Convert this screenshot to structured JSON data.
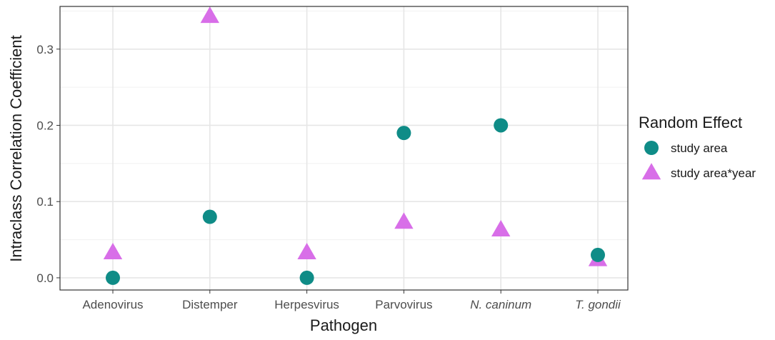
{
  "chart_data": {
    "type": "scatter",
    "title": "",
    "xlabel": "Pathogen",
    "ylabel": "Intraclass Correlation Coefficient",
    "categories": [
      "Adenovirus",
      "Distemper",
      "Herpesvirus",
      "Parvovirus",
      "N. caninum",
      "T. gondii"
    ],
    "italic_categories": [
      "N. caninum",
      "T. gondii"
    ],
    "ylim": [
      -0.016,
      0.356
    ],
    "y_ticks": [
      0.0,
      0.1,
      0.2,
      0.3
    ],
    "y_tick_labels": [
      "0.0",
      "0.1",
      "0.2",
      "0.3"
    ],
    "grid": true,
    "legend": {
      "title": "Random Effect",
      "placement": "right"
    },
    "series": [
      {
        "name": "study area",
        "marker": "circle",
        "color": "#0f8c87",
        "values": [
          0.0,
          0.08,
          0.0,
          0.19,
          0.2,
          0.03
        ]
      },
      {
        "name": "study area*year",
        "marker": "triangle",
        "color": "#d86ee8",
        "values": [
          0.033,
          0.343,
          0.033,
          0.073,
          0.063,
          0.024
        ]
      }
    ]
  }
}
